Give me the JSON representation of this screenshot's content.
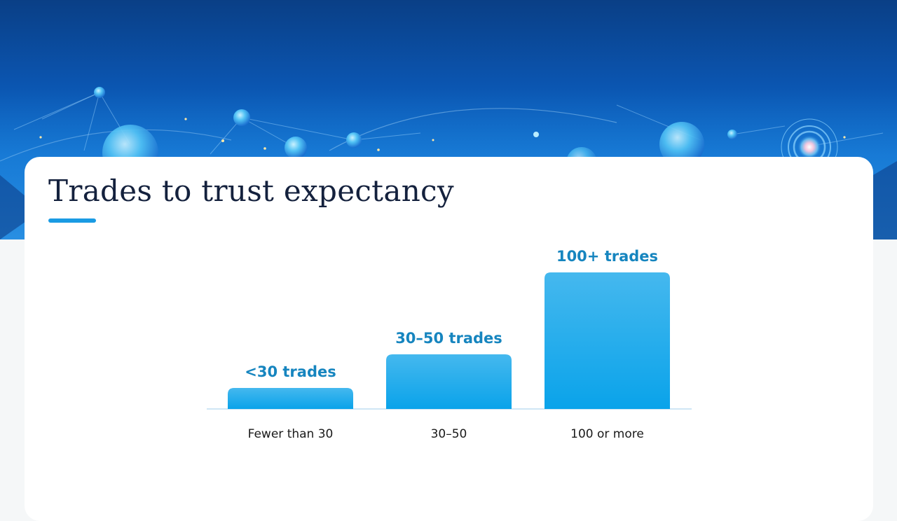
{
  "slide": {
    "title": "Trades to trust expectancy"
  },
  "colors": {
    "bar_top": "#45b8ee",
    "bar_bottom": "#0aa3ea",
    "data_label": "#1685bf",
    "tick_label": "#1a1a1a",
    "baseline": "#cfe6f5",
    "accent": "#1a9be3"
  },
  "hero": {
    "decoration": "abstract blue network of glowing spheres and connecting lines"
  },
  "chart_data": {
    "type": "bar",
    "categories": [
      "Fewer than 30",
      "30–50",
      "100 or more"
    ],
    "values": [
      1,
      2.6,
      6.5
    ],
    "data_labels": [
      "<30 trades",
      "30–50 trades",
      "100+ trades"
    ],
    "ylim": [
      0,
      6.5
    ],
    "grid": false,
    "legend": "none",
    "title": "",
    "xlabel": "",
    "ylabel": ""
  }
}
